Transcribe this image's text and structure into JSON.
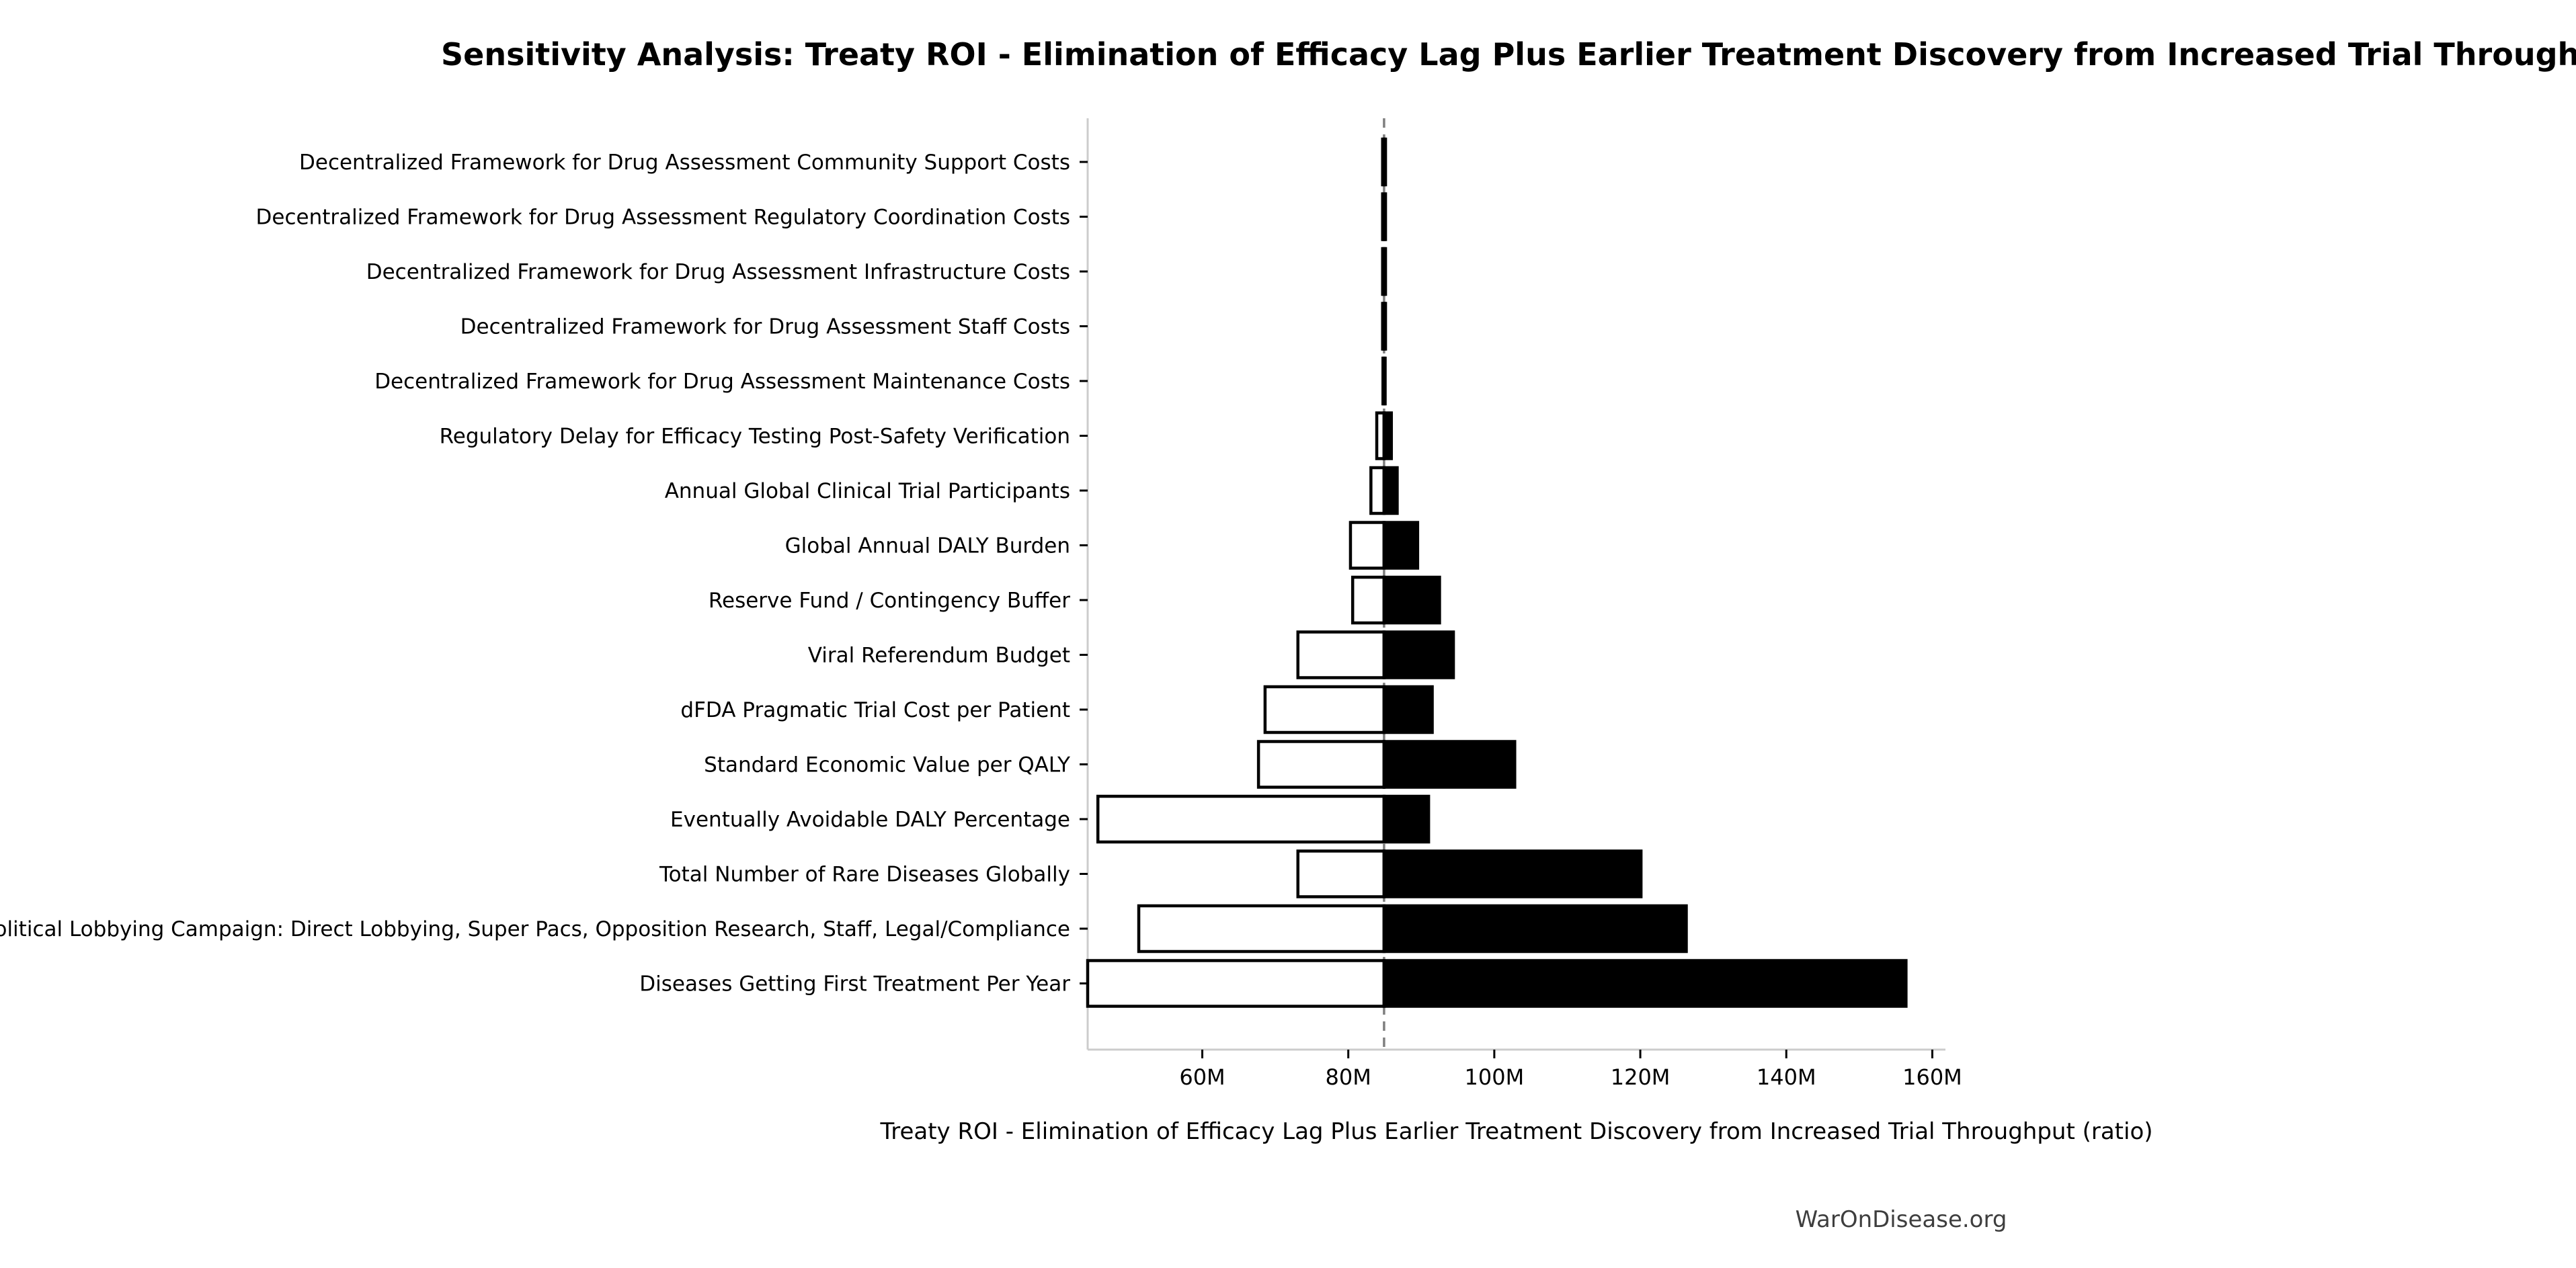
{
  "page": {
    "title": "Sensitivity Analysis: Treaty ROI - Elimination of Efficacy Lag Plus Earlier Treatment Discovery from Increased Trial Throughput",
    "footer": "WarOnDisease.org"
  },
  "chart_data": {
    "type": "bar",
    "subtype": "tornado-sensitivity",
    "orientation": "horizontal",
    "title": "Sensitivity Analysis: Treaty ROI - Elimination of Efficacy Lag Plus Earlier Treatment Discovery from Increased Trial Throughput",
    "xlabel": "Treaty ROI - Elimination of Efficacy Lag Plus Earlier Treatment Discovery from Increased Trial Throughput (ratio)",
    "ylabel": "",
    "unit": "M",
    "grid": false,
    "legend": false,
    "base_value": 84.9,
    "xlim": [
      44.3,
      161.8
    ],
    "x_ticks": [
      {
        "value": 60,
        "label": "60M"
      },
      {
        "value": 80,
        "label": "80M"
      },
      {
        "value": 100,
        "label": "100M"
      },
      {
        "value": 120,
        "label": "120M"
      },
      {
        "value": 140,
        "label": "140M"
      },
      {
        "value": 160,
        "label": "160M"
      }
    ],
    "bars": [
      {
        "label": "Decentralized Framework for Drug Assessment Community Support Costs",
        "low": 84.7,
        "high": 85.1
      },
      {
        "label": "Decentralized Framework for Drug Assessment Regulatory Coordination Costs",
        "low": 84.7,
        "high": 85.1
      },
      {
        "label": "Decentralized Framework for Drug Assessment Infrastructure Costs",
        "low": 84.7,
        "high": 85.1
      },
      {
        "label": "Decentralized Framework for Drug Assessment Staff Costs",
        "low": 84.7,
        "high": 85.1
      },
      {
        "label": "Decentralized Framework for Drug Assessment Maintenance Costs",
        "low": 84.75,
        "high": 85.05
      },
      {
        "label": "Regulatory Delay for Efficacy Testing Post-Safety Verification",
        "low": 83.9,
        "high": 85.9
      },
      {
        "label": "Annual Global Clinical Trial Participants",
        "low": 83.1,
        "high": 86.7
      },
      {
        "label": "Global Annual DALY Burden",
        "low": 80.3,
        "high": 89.5
      },
      {
        "label": "Reserve Fund / Contingency Buffer",
        "low": 80.6,
        "high": 92.5
      },
      {
        "label": "Viral Referendum Budget",
        "low": 73.1,
        "high": 94.4
      },
      {
        "label": "dFDA Pragmatic Trial Cost per Patient",
        "low": 68.6,
        "high": 91.5
      },
      {
        "label": "Standard Economic Value per QALY",
        "low": 67.7,
        "high": 102.8
      },
      {
        "label": "Eventually Avoidable DALY Percentage",
        "low": 45.7,
        "high": 91.0
      },
      {
        "label": "Total Number of Rare Diseases Globally",
        "low": 73.1,
        "high": 120.1
      },
      {
        "label": "Political Lobbying Campaign: Direct Lobbying, Super Pacs, Opposition Research, Staff, Legal/Compliance",
        "low": 51.3,
        "high": 126.3
      },
      {
        "label": "Diseases Getting First Treatment Per Year",
        "low": 44.3,
        "high": 156.4
      }
    ],
    "colors": {
      "low_fill": "#ffffff",
      "high_fill": "#000000",
      "bar_edge": "#000000",
      "baseline": "#7f7f7f",
      "spine": "#cccccc",
      "tick": "#000000",
      "text": "#000000",
      "footer_text": "#3e3e3e"
    }
  }
}
